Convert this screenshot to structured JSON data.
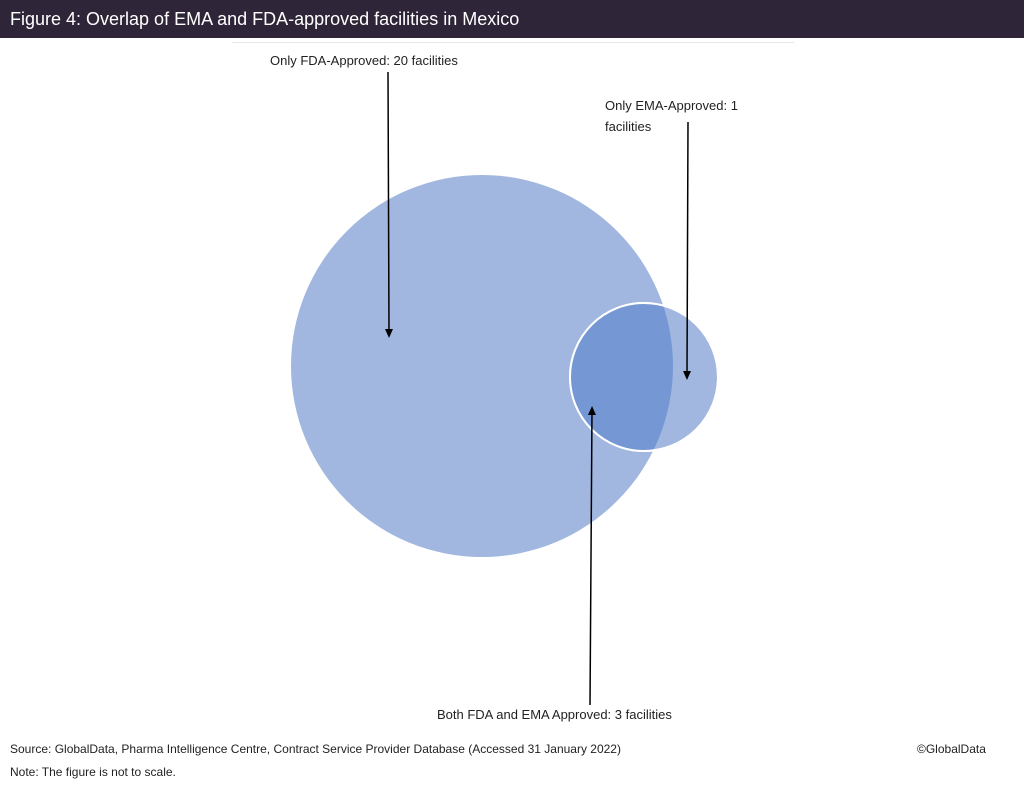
{
  "title": "Figure 4: Overlap of EMA and FDA-approved facilities in Mexico",
  "labels": {
    "only_fda": "Only FDA-Approved: 20 facilities",
    "only_ema": "Only EMA-Approved: 1 facilities",
    "both": "Both FDA and EMA Approved: 3 facilities"
  },
  "sets": [
    {
      "name": "FDA",
      "only_count": 20,
      "color": "#a1b7e0"
    },
    {
      "name": "EMA",
      "only_count": 1,
      "color": "#a1b7e0"
    }
  ],
  "overlap": {
    "count": 3,
    "color": "#7598d4"
  },
  "footer": {
    "source": "Source: GlobalData, Pharma Intelligence Centre, Contract Service Provider Database (Accessed 31 January 2022)",
    "note": "Note: The figure is not to scale.",
    "copyright": "©GlobalData"
  },
  "colors": {
    "title_bar": "#2e2638",
    "circle_fill": "#a1b7e0",
    "overlap_fill": "#7598d4",
    "arrow": "#000000"
  }
}
